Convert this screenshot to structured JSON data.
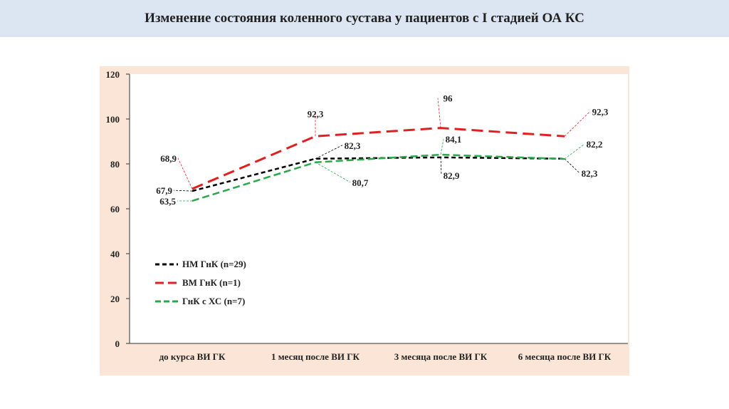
{
  "header": {
    "title": "Изменение состояния коленного сустава у пациентов с I стадией ОА КС"
  },
  "chart_data": {
    "type": "line",
    "categories": [
      "до курса ВИ ГК",
      "1 месяц после ВИ ГК",
      "3 месяца после ВИ ГК",
      "6 месяца после ВИ ГК"
    ],
    "ylim": [
      0,
      120
    ],
    "yticks": [
      0,
      20,
      40,
      60,
      80,
      100,
      120
    ],
    "ytick_labels": [
      "0",
      "20",
      "40",
      "60",
      "80",
      "100",
      "120"
    ],
    "legend_position": "left-bottom inside",
    "series": [
      {
        "name": "НМ ГнК (n=29)",
        "values": [
          67.9,
          82.3,
          82.9,
          82.3
        ],
        "labels": [
          "67,9",
          "82,3",
          "82,9",
          "82,3"
        ],
        "color": "#000000"
      },
      {
        "name": "ВМ ГнК (n=1)",
        "values": [
          68.9,
          92.3,
          96,
          92.3
        ],
        "labels": [
          "68,9",
          "92,3",
          "96",
          "92,3"
        ],
        "color": "#e02020"
      },
      {
        "name": "ГнК с ХС (n=7)",
        "values": [
          63.5,
          80.7,
          84.1,
          82.2
        ],
        "labels": [
          "63,5",
          "80,7",
          "84,1",
          "82,2"
        ],
        "color": "#2aa84a"
      }
    ]
  }
}
